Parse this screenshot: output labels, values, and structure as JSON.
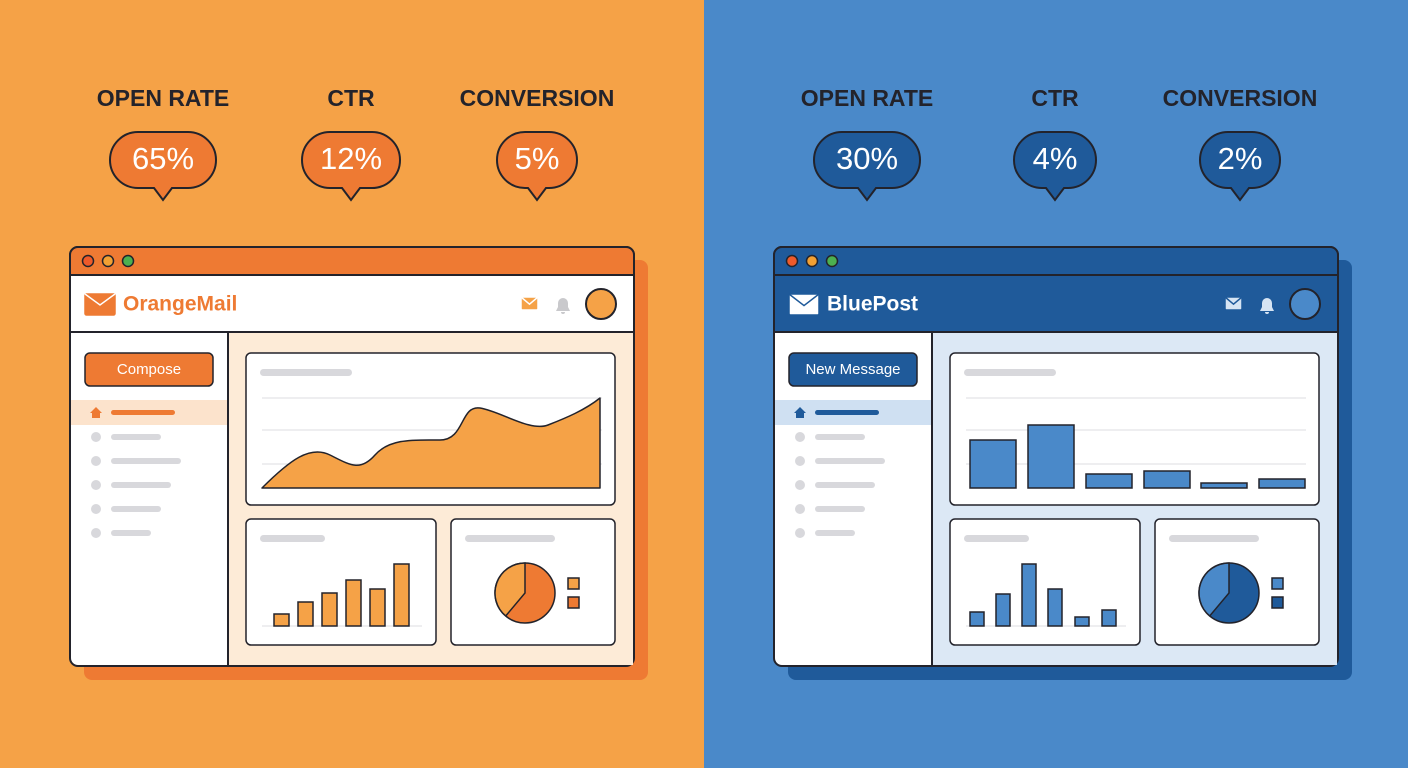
{
  "left": {
    "metrics": [
      {
        "label": "OPEN RATE",
        "value": "65%"
      },
      {
        "label": "CTR",
        "value": "12%"
      },
      {
        "label": "CONVERSION",
        "value": "5%"
      }
    ],
    "app_name": "OrangeMail",
    "button": "Compose"
  },
  "right": {
    "metrics": [
      {
        "label": "OPEN RATE",
        "value": "30%"
      },
      {
        "label": "CTR",
        "value": "4%"
      },
      {
        "label": "CONVERSION",
        "value": "2%"
      }
    ],
    "app_name": "BluePost",
    "button": "New Message"
  }
}
